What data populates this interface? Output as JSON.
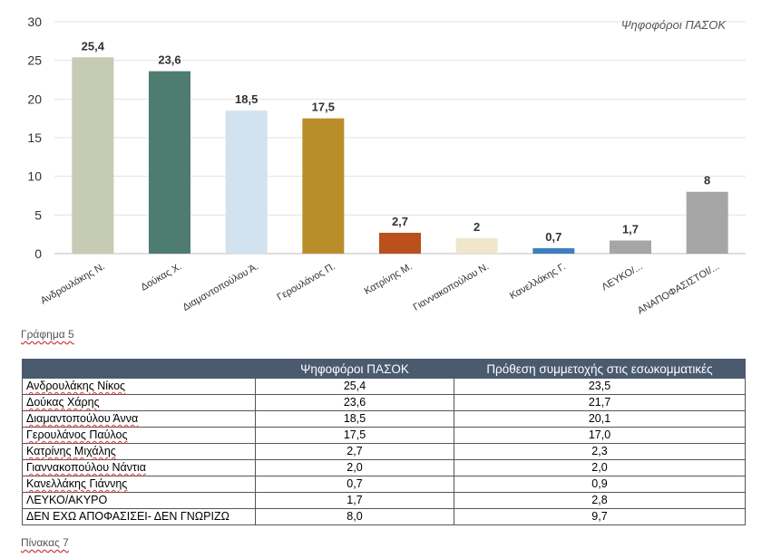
{
  "chart_data": {
    "type": "bar",
    "title": "Ψηφοφόροι ΠΑΣΟΚ",
    "categories": [
      "Ανδρουλάκης Ν.",
      "Δούκας Χ.",
      "Διαμαντοπούλου Ά.",
      "Γερουλάνος Π.",
      "Κατρίνης Μ.",
      "Γιαννακοπούλου Ν.",
      "Κανελλάκης Γ.",
      "ΛΕΥΚΟ/...",
      "ΑΝΑΠΟΦΑΣΙΣΤΟΙ/..."
    ],
    "values": [
      25.4,
      23.6,
      18.5,
      17.5,
      2.7,
      2,
      0.7,
      1.7,
      8
    ],
    "value_labels": [
      "25,4",
      "23,6",
      "18,5",
      "17,5",
      "2,7",
      "2",
      "0,7",
      "1,7",
      "8"
    ],
    "colors": [
      "#c6cbb3",
      "#4f7c70",
      "#d3e2ef",
      "#b98e2a",
      "#b9501e",
      "#efe6cc",
      "#3f7fbf",
      "#a6a6a6",
      "#a6a6a6"
    ],
    "ylim": [
      0,
      30
    ],
    "yticks": [
      "0",
      "5",
      "10",
      "15",
      "20",
      "25",
      "30"
    ],
    "ytick_values": [
      0,
      5,
      10,
      15,
      20,
      25,
      30
    ],
    "grid": true,
    "legend_position": "top-right"
  },
  "captions": {
    "chart": "Γράφημα 5",
    "table": "Πίνακας 7"
  },
  "table": {
    "headers": [
      "",
      "Ψηφοφόροι ΠΑΣΟΚ",
      "Πρόθεση συμμετοχής στις εσωκομματικές"
    ],
    "rows": [
      [
        "Ανδρουλάκης Νίκος",
        "25,4",
        "23,5"
      ],
      [
        "Δούκας Χάρης",
        "23,6",
        "21,7"
      ],
      [
        "Διαμαντοπούλου Άννα",
        "18,5",
        "20,1"
      ],
      [
        "Γερουλάνος Παύλος",
        "17,5",
        "17,0"
      ],
      [
        "Κατρίνης Μιχάλης",
        "2,7",
        "2,3"
      ],
      [
        "Γιαννακοπούλου Νάντια",
        "2,0",
        "2,0"
      ],
      [
        "Κανελλάκης Γιάννης",
        "0,7",
        "0,9"
      ],
      [
        "ΛΕΥΚΟ/ΑΚΥΡΟ",
        "1,7",
        "2,8"
      ],
      [
        "ΔΕΝ ΕΧΩ ΑΠΟΦΑΣΙΣΕΙ- ΔΕΝ ΓΝΩΡΙΖΩ",
        "8,0",
        "9,7"
      ]
    ]
  }
}
